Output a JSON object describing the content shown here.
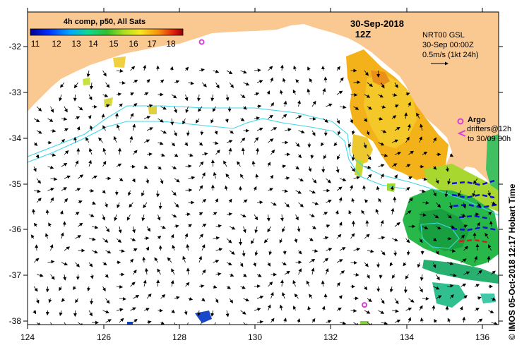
{
  "title": {
    "composite": "4h comp, p50, All Sats",
    "date": "30-Sep-2018",
    "time": "12Z"
  },
  "colorbar": {
    "ticks": [
      "11",
      "12",
      "13",
      "14",
      "15",
      "16",
      "17",
      "18"
    ],
    "min": 10.5,
    "max": 18.5,
    "unit": "°C"
  },
  "current_legend": {
    "source": "NRT00 GSL",
    "timestamp": "30-Sep 00:00Z",
    "scale": "0.5m/s (1kt 24h)"
  },
  "argo_legend": {
    "label": "Argo",
    "drifters": "drifters@12h",
    "range": "to 30/09 00h"
  },
  "axes": {
    "x_ticks": [
      "124",
      "126",
      "128",
      "130",
      "132",
      "134",
      "136"
    ],
    "y_ticks": [
      "-32",
      "-33",
      "-34",
      "-35",
      "-36",
      "-37",
      "-38"
    ],
    "lon_range": [
      124,
      136.5
    ],
    "lat_range": [
      -38.2,
      -31.4
    ]
  },
  "side_caption": "© IMOS 05-Oct-2018 12:17 Hobart Time",
  "colors": {
    "land": "#fac891",
    "sea": "#ffffff",
    "contour": "#3fd8e8",
    "argo": "#d83fd8",
    "drifter_blue": "#1010d0",
    "drifter_red": "#d02020"
  },
  "argo_floats": [
    {
      "lon": 128.6,
      "lat": -31.9
    },
    {
      "lon": 132.9,
      "lat": -37.65
    }
  ]
}
